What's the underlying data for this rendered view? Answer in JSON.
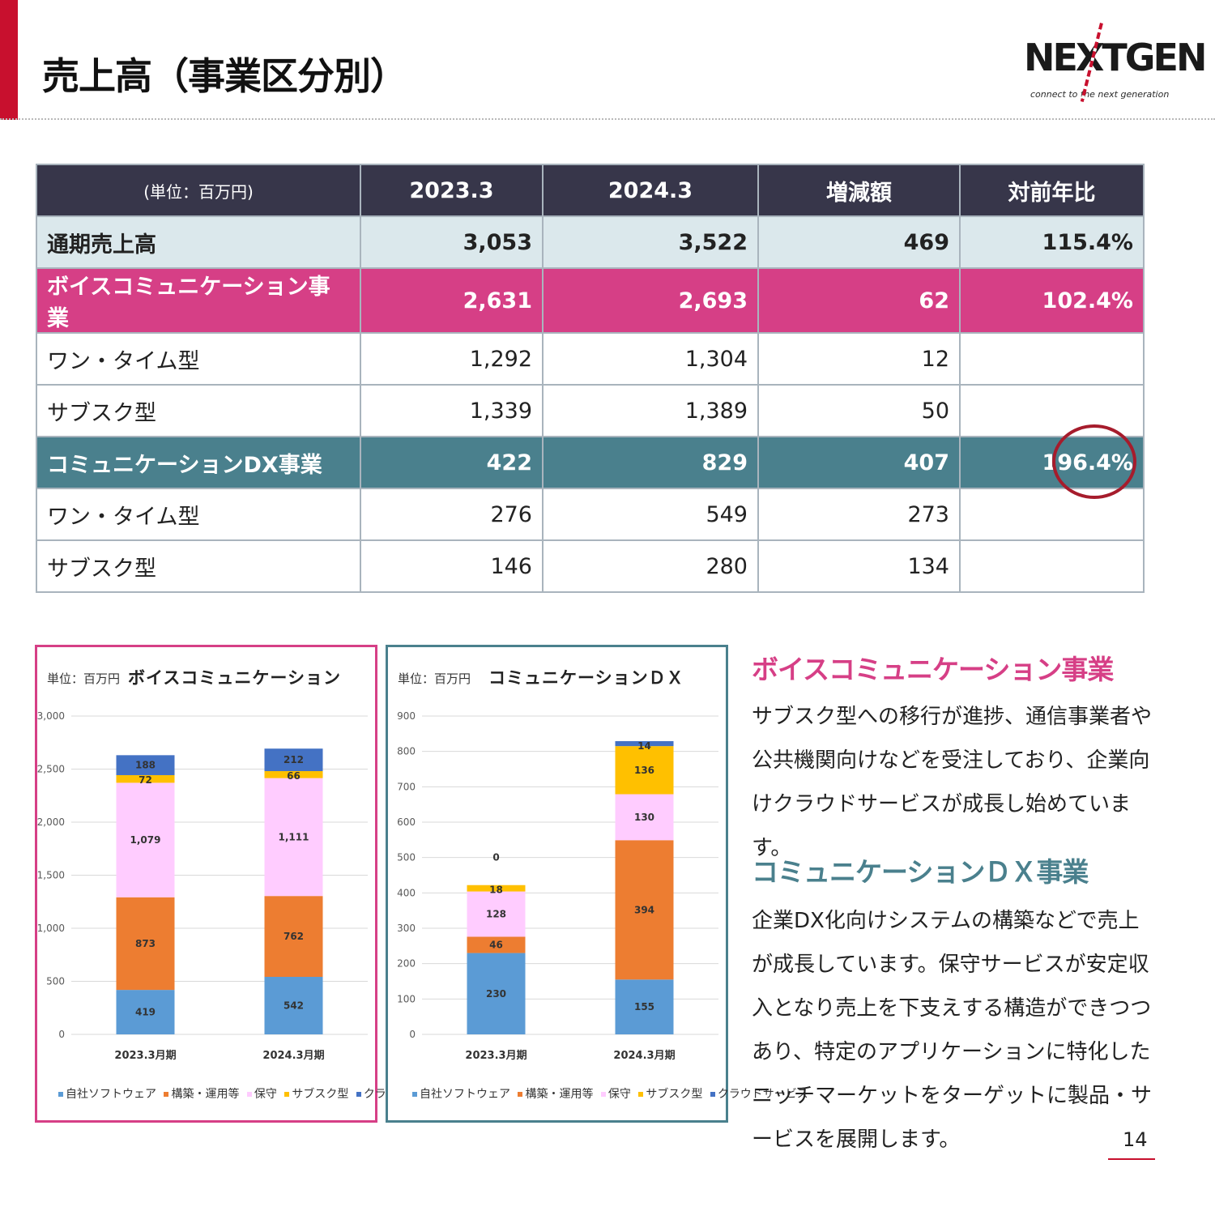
{
  "page": {
    "title": "売上高（事業区分別）",
    "page_number": "14",
    "accent_color": "#c8102e"
  },
  "logo": {
    "wordmark": "NEXTGEN",
    "tagline": "connect to the next generation"
  },
  "table": {
    "unit_label": "(単位：百万円)",
    "columns": [
      "2023.3",
      "2024.3",
      "増減額",
      "対前年比"
    ],
    "rows": [
      {
        "label": "通期売上高",
        "values": [
          "3,053",
          "3,522",
          "469",
          "115.4%"
        ],
        "style": "total"
      },
      {
        "label": "ボイスコミュニケーション事業",
        "values": [
          "2,631",
          "2,693",
          "62",
          "102.4%"
        ],
        "style": "voice"
      },
      {
        "label": "ワン・タイム型",
        "values": [
          "1,292",
          "1,304",
          "12",
          ""
        ],
        "style": "sub"
      },
      {
        "label": "サブスク型",
        "values": [
          "1,339",
          "1,389",
          "50",
          ""
        ],
        "style": "sub"
      },
      {
        "label": "コミュニケーションDX事業",
        "values": [
          "422",
          "829",
          "407",
          "196.4%"
        ],
        "style": "dx",
        "highlighted": true
      },
      {
        "label": "ワン・タイム型",
        "values": [
          "276",
          "549",
          "273",
          ""
        ],
        "style": "sub"
      },
      {
        "label": "サブスク型",
        "values": [
          "146",
          "280",
          "134",
          ""
        ],
        "style": "sub"
      }
    ],
    "colors": {
      "header": "#37364a",
      "total": "#dbe8ec",
      "voice": "#d63f86",
      "dx": "#4a808d",
      "highlight_circle": "#a61c2c"
    }
  },
  "chart_data": [
    {
      "type": "bar",
      "stacked": true,
      "title": "ボイスコミュニケーション",
      "unit_label": "単位：百万円",
      "categories": [
        "2023.3月期",
        "2024.3月期"
      ],
      "ylim": [
        0,
        3000
      ],
      "yticks": [
        "0",
        "500",
        "1,000",
        "1,500",
        "2,000",
        "2,500",
        "3,000"
      ],
      "ytick_values": [
        0,
        500,
        1000,
        1500,
        2000,
        2500,
        3000
      ],
      "grid": true,
      "legend_position": "bottom",
      "series": [
        {
          "name": "自社ソフトウェア",
          "color": "#5b9bd5",
          "values": [
            419,
            542
          ],
          "labels": [
            "419",
            "542"
          ]
        },
        {
          "name": "構築・運用等",
          "color": "#ed7d31",
          "values": [
            873,
            762
          ],
          "labels": [
            "873",
            "762"
          ]
        },
        {
          "name": "保守",
          "color": "#ffccff",
          "values": [
            1079,
            1111
          ],
          "labels": [
            "1,079",
            "1,111"
          ]
        },
        {
          "name": "サブスク型",
          "color": "#ffc000",
          "values": [
            72,
            66
          ],
          "labels": [
            "72",
            "66"
          ]
        },
        {
          "name": "クラウドサービス",
          "color": "#4472c4",
          "values": [
            188,
            212
          ],
          "labels": [
            "188",
            "212"
          ]
        }
      ]
    },
    {
      "type": "bar",
      "stacked": true,
      "title": "コミュニケーションＤＸ",
      "unit_label": "単位：百万円",
      "categories": [
        "2023.3月期",
        "2024.3月期"
      ],
      "ylim": [
        0,
        900
      ],
      "yticks": [
        "0",
        "100",
        "200",
        "300",
        "400",
        "500",
        "600",
        "700",
        "800",
        "900"
      ],
      "ytick_values": [
        0,
        100,
        200,
        300,
        400,
        500,
        600,
        700,
        800,
        900
      ],
      "grid": true,
      "legend_position": "bottom",
      "series": [
        {
          "name": "自社ソフトウェア",
          "color": "#5b9bd5",
          "values": [
            230,
            155
          ],
          "labels": [
            "230",
            "155"
          ]
        },
        {
          "name": "構築・運用等",
          "color": "#ed7d31",
          "values": [
            46,
            394
          ],
          "labels": [
            "46",
            "394"
          ]
        },
        {
          "name": "保守",
          "color": "#ffccff",
          "values": [
            128,
            130
          ],
          "labels": [
            "128",
            "130"
          ]
        },
        {
          "name": "サブスク型",
          "color": "#ffc000",
          "values": [
            18,
            136
          ],
          "labels": [
            "18",
            "136"
          ]
        },
        {
          "name": "クラウドサービス",
          "color": "#4472c4",
          "values": [
            0,
            14
          ],
          "labels": [
            "0",
            "14"
          ]
        }
      ]
    }
  ],
  "sections": {
    "voice": {
      "heading": "ボイスコミュニケーション事業",
      "body": "サブスク型への移行が進捗、通信事業者や公共機関向けなどを受注しており、企業向けクラウドサービスが成長し始めています。"
    },
    "dx": {
      "heading": "コミュニケーションＤＸ事業",
      "body": "企業DX化向けシステムの構築などで売上が成長しています。保守サービスが安定収入となり売上を下支えする構造ができつつあり、特定のアプリケーションに特化したニッチマーケットをターゲットに製品・サービスを展開します。"
    }
  }
}
